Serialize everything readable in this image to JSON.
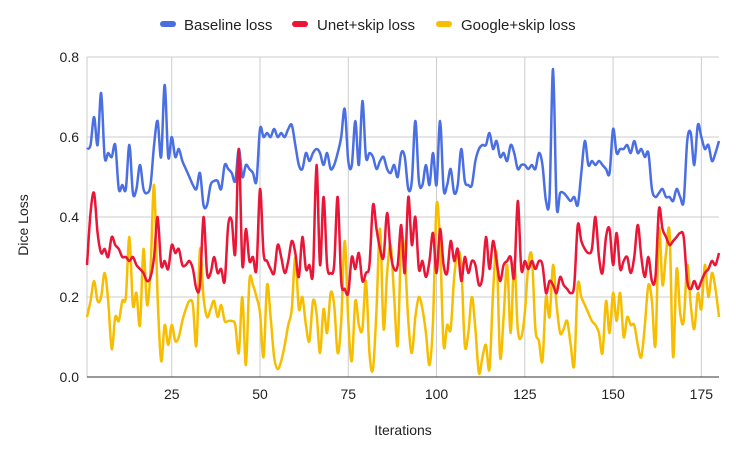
{
  "chart_data": {
    "type": "line",
    "xlabel": "Iterations",
    "ylabel": "Dice Loss",
    "xlim": [
      1,
      180
    ],
    "ylim": [
      0,
      0.8
    ],
    "xticks": [
      25,
      50,
      75,
      100,
      125,
      150,
      175
    ],
    "yticks": [
      0,
      0.2,
      0.4,
      0.6,
      0.8
    ],
    "ytick_labels": [
      "0.0",
      "0.2",
      "0.4",
      "0.6",
      "0.8"
    ],
    "xtick_labels": [
      "25",
      "50",
      "75",
      "100",
      "125",
      "150",
      "175"
    ],
    "legend_position": "top",
    "grid": "vertical",
    "x_start": 1,
    "series": [
      {
        "name": "Baseline loss",
        "color": "#4a6fe3",
        "values": [
          0.57,
          0.58,
          0.65,
          0.58,
          0.71,
          0.55,
          0.56,
          0.55,
          0.58,
          0.47,
          0.48,
          0.47,
          0.58,
          0.46,
          0.47,
          0.53,
          0.47,
          0.46,
          0.48,
          0.58,
          0.64,
          0.55,
          0.73,
          0.55,
          0.6,
          0.55,
          0.57,
          0.54,
          0.52,
          0.5,
          0.48,
          0.47,
          0.51,
          0.43,
          0.43,
          0.48,
          0.49,
          0.49,
          0.47,
          0.53,
          0.52,
          0.51,
          0.49,
          0.57,
          0.5,
          0.53,
          0.52,
          0.51,
          0.49,
          0.62,
          0.6,
          0.61,
          0.6,
          0.62,
          0.6,
          0.61,
          0.6,
          0.62,
          0.63,
          0.58,
          0.53,
          0.52,
          0.56,
          0.54,
          0.56,
          0.57,
          0.56,
          0.53,
          0.56,
          0.52,
          0.53,
          0.56,
          0.6,
          0.67,
          0.54,
          0.53,
          0.64,
          0.53,
          0.69,
          0.55,
          0.56,
          0.55,
          0.52,
          0.54,
          0.55,
          0.52,
          0.51,
          0.53,
          0.5,
          0.56,
          0.55,
          0.47,
          0.49,
          0.64,
          0.49,
          0.48,
          0.53,
          0.48,
          0.56,
          0.48,
          0.64,
          0.47,
          0.48,
          0.52,
          0.46,
          0.48,
          0.57,
          0.49,
          0.48,
          0.48,
          0.54,
          0.57,
          0.58,
          0.58,
          0.61,
          0.57,
          0.59,
          0.55,
          0.56,
          0.54,
          0.58,
          0.56,
          0.52,
          0.53,
          0.53,
          0.52,
          0.53,
          0.52,
          0.56,
          0.53,
          0.44,
          0.45,
          0.77,
          0.43,
          0.46,
          0.46,
          0.45,
          0.44,
          0.45,
          0.43,
          0.51,
          0.59,
          0.53,
          0.54,
          0.53,
          0.54,
          0.53,
          0.52,
          0.51,
          0.62,
          0.56,
          0.57,
          0.57,
          0.58,
          0.56,
          0.59,
          0.56,
          0.57,
          0.55,
          0.56,
          0.47,
          0.45,
          0.46,
          0.47,
          0.45,
          0.45,
          0.44,
          0.47,
          0.45,
          0.44,
          0.59,
          0.61,
          0.53,
          0.63,
          0.6,
          0.57,
          0.58,
          0.54,
          0.56,
          0.59
        ]
      },
      {
        "name": "Unet+skip loss",
        "color": "#ea1537",
        "values": [
          0.28,
          0.41,
          0.46,
          0.36,
          0.31,
          0.32,
          0.3,
          0.35,
          0.33,
          0.32,
          0.3,
          0.3,
          0.29,
          0.3,
          0.28,
          0.27,
          0.26,
          0.24,
          0.25,
          0.3,
          0.4,
          0.28,
          0.29,
          0.27,
          0.33,
          0.31,
          0.32,
          0.28,
          0.28,
          0.29,
          0.27,
          0.22,
          0.23,
          0.4,
          0.26,
          0.26,
          0.3,
          0.26,
          0.27,
          0.24,
          0.38,
          0.39,
          0.31,
          0.57,
          0.28,
          0.37,
          0.29,
          0.3,
          0.27,
          0.47,
          0.31,
          0.29,
          0.27,
          0.26,
          0.33,
          0.3,
          0.26,
          0.29,
          0.34,
          0.31,
          0.25,
          0.35,
          0.27,
          0.28,
          0.26,
          0.53,
          0.28,
          0.45,
          0.28,
          0.26,
          0.28,
          0.45,
          0.24,
          0.22,
          0.21,
          0.3,
          0.27,
          0.31,
          0.24,
          0.26,
          0.28,
          0.43,
          0.37,
          0.32,
          0.3,
          0.41,
          0.31,
          0.27,
          0.28,
          0.38,
          0.26,
          0.45,
          0.33,
          0.4,
          0.27,
          0.29,
          0.25,
          0.29,
          0.36,
          0.26,
          0.37,
          0.28,
          0.26,
          0.34,
          0.29,
          0.32,
          0.24,
          0.3,
          0.26,
          0.29,
          0.28,
          0.23,
          0.25,
          0.35,
          0.27,
          0.34,
          0.29,
          0.24,
          0.28,
          0.29,
          0.3,
          0.25,
          0.44,
          0.27,
          0.29,
          0.27,
          0.29,
          0.27,
          0.29,
          0.28,
          0.21,
          0.24,
          0.23,
          0.21,
          0.25,
          0.23,
          0.22,
          0.21,
          0.23,
          0.38,
          0.34,
          0.32,
          0.31,
          0.32,
          0.4,
          0.3,
          0.26,
          0.35,
          0.37,
          0.28,
          0.36,
          0.27,
          0.29,
          0.3,
          0.26,
          0.3,
          0.38,
          0.3,
          0.25,
          0.3,
          0.24,
          0.25,
          0.42,
          0.37,
          0.35,
          0.33,
          0.34,
          0.35,
          0.36,
          0.35,
          0.24,
          0.22,
          0.24,
          0.22,
          0.24,
          0.26,
          0.27,
          0.29,
          0.28,
          0.31
        ]
      },
      {
        "name": "Google+skip loss",
        "color": "#f7be00",
        "values": [
          0.15,
          0.19,
          0.24,
          0.19,
          0.2,
          0.26,
          0.19,
          0.07,
          0.15,
          0.14,
          0.19,
          0.2,
          0.35,
          0.18,
          0.21,
          0.13,
          0.32,
          0.18,
          0.27,
          0.48,
          0.2,
          0.04,
          0.13,
          0.08,
          0.13,
          0.09,
          0.1,
          0.14,
          0.17,
          0.19,
          0.18,
          0.08,
          0.32,
          0.2,
          0.15,
          0.17,
          0.19,
          0.15,
          0.18,
          0.14,
          0.14,
          0.14,
          0.13,
          0.06,
          0.2,
          0.03,
          0.24,
          0.23,
          0.2,
          0.16,
          0.05,
          0.23,
          0.15,
          0.05,
          0.02,
          0.04,
          0.08,
          0.13,
          0.17,
          0.3,
          0.17,
          0.2,
          0.13,
          0.09,
          0.19,
          0.16,
          0.06,
          0.17,
          0.11,
          0.21,
          0.18,
          0.06,
          0.14,
          0.34,
          0.14,
          0.04,
          0.19,
          0.13,
          0.12,
          0.24,
          0.06,
          0.02,
          0.17,
          0.37,
          0.12,
          0.26,
          0.33,
          0.2,
          0.08,
          0.34,
          0.3,
          0.14,
          0.06,
          0.15,
          0.2,
          0.17,
          0.11,
          0.03,
          0.14,
          0.43,
          0.33,
          0.08,
          0.13,
          0.12,
          0.25,
          0.31,
          0.28,
          0.08,
          0.11,
          0.2,
          0.12,
          0.01,
          0.05,
          0.08,
          0.02,
          0.21,
          0.31,
          0.05,
          0.15,
          0.28,
          0.11,
          0.29,
          0.12,
          0.1,
          0.16,
          0.28,
          0.3,
          0.12,
          0.09,
          0.04,
          0.2,
          0.15,
          0.28,
          0.18,
          0.11,
          0.12,
          0.14,
          0.08,
          0.03,
          0.23,
          0.2,
          0.18,
          0.16,
          0.14,
          0.13,
          0.11,
          0.06,
          0.19,
          0.11,
          0.21,
          0.14,
          0.21,
          0.1,
          0.15,
          0.13,
          0.13,
          0.08,
          0.05,
          0.13,
          0.23,
          0.19,
          0.08,
          0.37,
          0.23,
          0.31,
          0.36,
          0.05,
          0.27,
          0.16,
          0.14,
          0.28,
          0.18,
          0.12,
          0.21,
          0.17,
          0.28,
          0.2,
          0.26,
          0.22,
          0.15
        ]
      }
    ]
  }
}
